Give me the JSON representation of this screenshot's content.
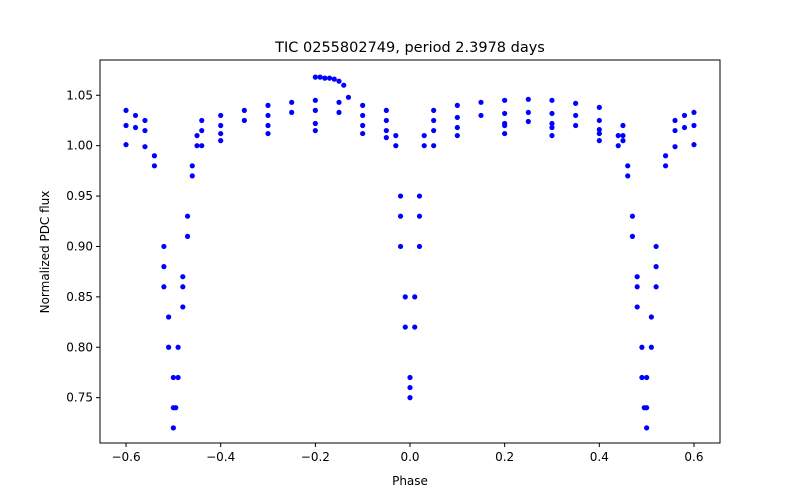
{
  "chart_data": {
    "type": "scatter",
    "title": "TIC 0255802749, period 2.3978 days",
    "xlabel": "Phase",
    "ylabel": "Normalized PDC flux",
    "xlim": [
      -0.655,
      0.655
    ],
    "ylim": [
      0.705,
      1.085
    ],
    "xticks": [
      -0.6,
      -0.4,
      -0.2,
      0.0,
      0.2,
      0.4,
      0.6
    ],
    "xtick_labels": [
      "−0.6",
      "−0.4",
      "−0.2",
      "0.0",
      "0.2",
      "0.4",
      "0.6"
    ],
    "yticks": [
      0.75,
      0.8,
      0.85,
      0.9,
      0.95,
      1.0,
      1.05
    ],
    "ytick_labels": [
      "0.75",
      "0.80",
      "0.85",
      "0.90",
      "0.95",
      "1.00",
      "1.05"
    ],
    "grid": false,
    "marker_color": "#0000ff",
    "series": [
      {
        "x": [
          -0.6,
          -0.58,
          -0.56,
          -0.54,
          -0.52,
          -0.51,
          -0.5,
          -0.495,
          -0.49,
          -0.48,
          -0.47,
          -0.46,
          -0.45,
          -0.44,
          -0.4,
          -0.35,
          -0.3,
          -0.25,
          -0.2,
          -0.15,
          -0.1,
          -0.05,
          -0.03,
          -0.02,
          -0.01,
          0.0,
          0.01,
          0.02,
          0.03,
          0.05,
          0.1,
          0.15,
          0.2,
          0.25,
          0.3,
          0.35,
          0.4,
          0.45,
          0.46,
          0.47,
          0.48,
          0.49,
          0.495,
          0.5,
          0.51,
          0.52,
          0.54,
          0.56,
          0.58,
          0.6
        ],
        "y": [
          1.035,
          1.03,
          1.025,
          0.99,
          0.9,
          0.83,
          0.77,
          0.74,
          0.77,
          0.84,
          0.91,
          0.97,
          1.01,
          1.025,
          1.03,
          1.035,
          1.04,
          1.043,
          1.045,
          1.043,
          1.04,
          1.035,
          1.01,
          0.95,
          0.85,
          0.77,
          0.85,
          0.95,
          1.01,
          1.035,
          1.04,
          1.043,
          1.045,
          1.046,
          1.045,
          1.042,
          1.038,
          1.02,
          0.97,
          0.91,
          0.84,
          0.77,
          0.74,
          0.77,
          0.83,
          0.9,
          0.99,
          1.025,
          1.03,
          1.033
        ]
      },
      {
        "x": [
          -0.6,
          -0.58,
          -0.56,
          -0.54,
          -0.52,
          -0.51,
          -0.5,
          -0.49,
          -0.48,
          -0.47,
          -0.46,
          -0.45,
          -0.44,
          -0.4,
          -0.35,
          -0.3,
          -0.25,
          -0.2,
          -0.15,
          -0.1,
          -0.05,
          -0.03,
          -0.02,
          -0.01,
          0.0,
          0.01,
          0.02,
          0.03,
          0.05,
          0.1,
          0.15,
          0.2,
          0.25,
          0.3,
          0.35,
          0.4,
          0.45,
          0.46,
          0.47,
          0.48,
          0.49,
          0.5,
          0.51,
          0.52,
          0.54,
          0.56,
          0.58,
          0.6
        ],
        "y": [
          1.02,
          1.018,
          1.015,
          0.98,
          0.88,
          0.8,
          0.74,
          0.8,
          0.87,
          0.93,
          0.98,
          1.0,
          1.015,
          1.02,
          1.025,
          1.03,
          1.033,
          1.035,
          1.033,
          1.03,
          1.025,
          1.0,
          0.93,
          0.82,
          0.76,
          0.82,
          0.93,
          1.0,
          1.025,
          1.028,
          1.03,
          1.032,
          1.033,
          1.032,
          1.03,
          1.025,
          1.01,
          0.98,
          0.93,
          0.87,
          0.8,
          0.74,
          0.8,
          0.88,
          0.98,
          1.015,
          1.018,
          1.02
        ]
      },
      {
        "x": [
          -0.6,
          -0.56,
          -0.52,
          -0.5,
          -0.48,
          -0.44,
          -0.4,
          -0.3,
          -0.2,
          -0.1,
          -0.05,
          -0.02,
          0.0,
          0.02,
          0.05,
          0.1,
          0.2,
          0.3,
          0.4,
          0.44,
          0.48,
          0.5,
          0.52,
          0.56,
          0.6
        ],
        "y": [
          1.001,
          0.999,
          0.86,
          0.72,
          0.86,
          1.0,
          1.005,
          1.012,
          1.015,
          1.012,
          1.008,
          0.9,
          0.75,
          0.9,
          1.0,
          1.01,
          1.012,
          1.01,
          1.005,
          1.0,
          0.86,
          0.72,
          0.86,
          0.999,
          1.001
        ]
      },
      {
        "x": [
          -0.4,
          -0.3,
          -0.2,
          -0.1,
          -0.05,
          0.05,
          0.1,
          0.2,
          0.3,
          0.4,
          0.45
        ],
        "y": [
          1.012,
          1.02,
          1.022,
          1.02,
          1.015,
          1.015,
          1.018,
          1.02,
          1.018,
          1.012,
          1.005
        ]
      },
      {
        "x": [
          -0.2,
          -0.19,
          -0.18,
          -0.17,
          -0.16,
          -0.15,
          -0.14,
          -0.13
        ],
        "y": [
          1.068,
          1.068,
          1.067,
          1.067,
          1.066,
          1.064,
          1.06,
          1.048
        ]
      },
      {
        "x": [
          0.2,
          0.25,
          0.3,
          0.35,
          0.4,
          0.44
        ],
        "y": [
          1.022,
          1.024,
          1.022,
          1.02,
          1.016,
          1.01
        ]
      }
    ]
  }
}
